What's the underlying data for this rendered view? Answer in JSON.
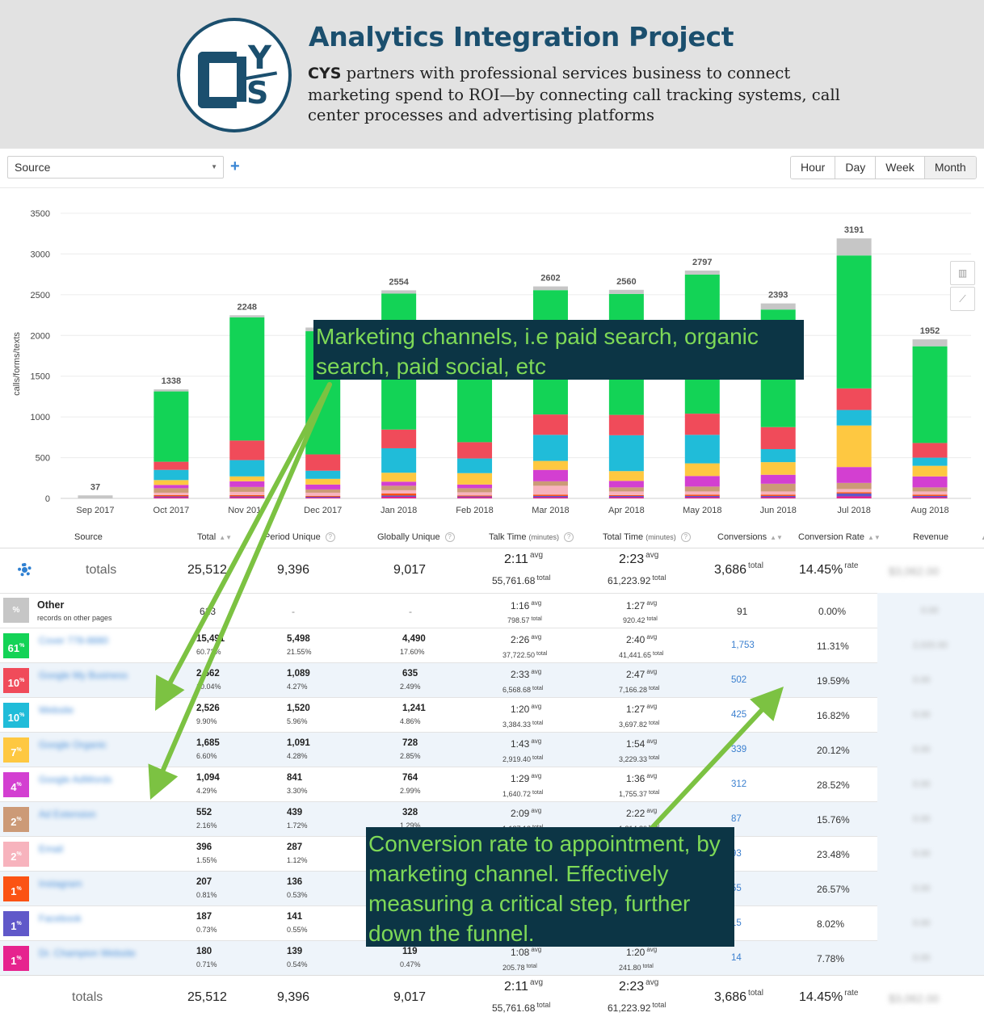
{
  "header": {
    "title": "Analytics Integration Project",
    "desc_bold": "CYS",
    "desc_rest": " partners with professional services business to connect marketing spend to ROI—by connecting call tracking systems, call center processes and advertising platforms",
    "logo_y": "Y",
    "logo_s": "S"
  },
  "toolbar": {
    "source_label": "Source",
    "add_label": "+",
    "ranges": [
      "Hour",
      "Day",
      "Week",
      "Month"
    ],
    "selected_range": "Month"
  },
  "colors": {
    "other": "#c6c6c6",
    "green": "#13d356",
    "red": "#f04b5a",
    "cyan": "#20bcd9",
    "yellow": "#fec841",
    "magenta": "#d33fd1",
    "tan": "#cc9a77",
    "pink": "#f7b3bd",
    "orange": "#fb5314",
    "purple": "#6058c9",
    "hotpink": "#e6238e"
  },
  "chart_data": {
    "type": "bar",
    "ylabel": "calls/forms/texts",
    "ylim": [
      0,
      3500
    ],
    "yticks": [
      0,
      500,
      1000,
      1500,
      2000,
      2500,
      3000,
      3500
    ],
    "categories": [
      "Sep 2017",
      "Oct 2017",
      "Nov 2017",
      "Dec 2017",
      "Jan 2018",
      "Feb 2018",
      "Mar 2018",
      "Apr 2018",
      "May 2018",
      "Jun 2018",
      "Jul 2018",
      "Aug 2018"
    ],
    "totals": [
      37,
      1338,
      2248,
      2097,
      2554,
      2069,
      2602,
      2560,
      2797,
      2393,
      3191,
      1952
    ],
    "total_labels": [
      "37",
      "1338",
      "2248",
      "",
      "2554",
      "",
      "2602",
      "2560",
      "2797",
      "2393",
      "3191",
      "1952"
    ],
    "grid": true,
    "series": [
      {
        "color_key": "hotpink",
        "values": [
          0,
          15,
          15,
          10,
          20,
          15,
          15,
          15,
          15,
          15,
          25,
          15
        ]
      },
      {
        "color_key": "purple",
        "values": [
          0,
          10,
          10,
          10,
          15,
          10,
          15,
          15,
          15,
          15,
          35,
          15
        ]
      },
      {
        "color_key": "orange",
        "values": [
          0,
          15,
          15,
          10,
          25,
          10,
          15,
          10,
          15,
          15,
          15,
          15
        ]
      },
      {
        "color_key": "pink",
        "values": [
          0,
          30,
          40,
          40,
          40,
          40,
          110,
          45,
          40,
          40,
          40,
          40
        ]
      },
      {
        "color_key": "tan",
        "values": [
          0,
          55,
          60,
          40,
          55,
          50,
          55,
          50,
          60,
          95,
          75,
          50
        ]
      },
      {
        "color_key": "magenta",
        "values": [
          0,
          40,
          70,
          60,
          50,
          45,
          140,
          80,
          130,
          110,
          195,
          135
        ]
      },
      {
        "color_key": "yellow",
        "values": [
          0,
          60,
          60,
          70,
          110,
          140,
          110,
          120,
          155,
          155,
          510,
          130
        ]
      },
      {
        "color_key": "cyan",
        "values": [
          0,
          125,
          200,
          100,
          300,
          180,
          320,
          440,
          350,
          160,
          190,
          100
        ]
      },
      {
        "color_key": "red",
        "values": [
          0,
          100,
          240,
          200,
          230,
          200,
          250,
          250,
          260,
          270,
          265,
          180
        ]
      },
      {
        "color_key": "green",
        "values": [
          0,
          863,
          1513,
          1512,
          1669,
          1334,
          1526,
          1485,
          1707,
          1443,
          1632,
          1187
        ]
      },
      {
        "color_key": "other",
        "values": [
          37,
          25,
          25,
          45,
          40,
          45,
          46,
          50,
          50,
          75,
          209,
          85
        ]
      }
    ]
  },
  "table": {
    "headers": {
      "source": "Source",
      "total": "Total",
      "period_unique": "Period Unique",
      "globally_unique": "Globally Unique",
      "talk_time": "Talk Time",
      "total_time": "Total Time",
      "minutes": "(minutes)",
      "conversions": "Conversions",
      "conversion_rate": "Conversion Rate",
      "revenue": "Revenue"
    },
    "totals": {
      "label": "totals",
      "total": "25,512",
      "period_unique": "9,396",
      "globally_unique": "9,017",
      "talk_avg": "2:11",
      "talk_total": "55,761.68",
      "time_avg": "2:23",
      "time_total": "61,223.92",
      "conversions": "3,686",
      "rate": "14.45%",
      "revenue": "$3,062.00",
      "avg_word": "avg",
      "total_word": "total",
      "rate_word": "rate"
    },
    "other_row": {
      "badge": "%",
      "name": "Other",
      "subtitle": "records on other pages",
      "total": "613",
      "period_unique": "-",
      "globally_unique": "-",
      "talk_avg": "1:16",
      "talk_total": "798.57",
      "time_avg": "1:27",
      "time_total": "920.42",
      "conversions": "91",
      "rate": "0.00%",
      "revenue": "0.00"
    },
    "rows": [
      {
        "badge": "61",
        "color_key": "green",
        "name": "Cover 778-8880",
        "total": "15,491",
        "total_pct": "60.72%",
        "pu": "5,498",
        "pu_pct": "21.55%",
        "gu": "4,490",
        "gu_pct": "17.60%",
        "talk_avg": "2:26",
        "talk_total": "37,722.50",
        "time_avg": "2:40",
        "time_total": "41,441.65",
        "conv": "1,753",
        "rate": "11.31%",
        "revenue": "2,020.00"
      },
      {
        "badge": "10",
        "color_key": "red",
        "name": "Google My Business",
        "total": "2,562",
        "total_pct": "10.04%",
        "pu": "1,089",
        "pu_pct": "4.27%",
        "gu": "635",
        "gu_pct": "2.49%",
        "talk_avg": "2:33",
        "talk_total": "6,568.68",
        "time_avg": "2:47",
        "time_total": "7,166.28",
        "conv": "502",
        "rate": "19.59%",
        "revenue": "0.00"
      },
      {
        "badge": "10",
        "color_key": "cyan",
        "name": "Website",
        "total": "2,526",
        "total_pct": "9.90%",
        "pu": "1,520",
        "pu_pct": "5.96%",
        "gu": "1,241",
        "gu_pct": "4.86%",
        "talk_avg": "1:20",
        "talk_total": "3,384.33",
        "time_avg": "1:27",
        "time_total": "3,697.82",
        "conv": "425",
        "rate": "16.82%",
        "revenue": "0.00"
      },
      {
        "badge": "7",
        "color_key": "yellow",
        "name": "Google Organic",
        "total": "1,685",
        "total_pct": "6.60%",
        "pu": "1,091",
        "pu_pct": "4.28%",
        "gu": "728",
        "gu_pct": "2.85%",
        "talk_avg": "1:43",
        "talk_total": "2,919.40",
        "time_avg": "1:54",
        "time_total": "3,229.33",
        "conv": "339",
        "rate": "20.12%",
        "revenue": "0.00"
      },
      {
        "badge": "4",
        "color_key": "magenta",
        "name": "Google AdWords",
        "total": "1,094",
        "total_pct": "4.29%",
        "pu": "841",
        "pu_pct": "3.30%",
        "gu": "764",
        "gu_pct": "2.99%",
        "talk_avg": "1:29",
        "talk_total": "1,640.72",
        "time_avg": "1:36",
        "time_total": "1,755.37",
        "conv": "312",
        "rate": "28.52%",
        "revenue": "0.00"
      },
      {
        "badge": "2",
        "color_key": "tan",
        "name": "Ad Extension",
        "total": "552",
        "total_pct": "2.16%",
        "pu": "439",
        "pu_pct": "1.72%",
        "gu": "328",
        "gu_pct": "1.29%",
        "talk_avg": "2:09",
        "talk_total": "1,187.13",
        "time_avg": "2:22",
        "time_total": "1,314.80",
        "conv": "87",
        "rate": "15.76%",
        "revenue": "0.00"
      },
      {
        "badge": "2",
        "color_key": "pink",
        "name": "Email",
        "total": "396",
        "total_pct": "1.55%",
        "pu": "287",
        "pu_pct": "1.12%",
        "gu": "",
        "gu_pct": "",
        "talk_avg": "",
        "talk_total": "",
        "time_avg": "",
        "time_total": "",
        "conv": "93",
        "rate": "23.48%",
        "revenue": "0.00"
      },
      {
        "badge": "1",
        "color_key": "orange",
        "name": "Instagram",
        "total": "207",
        "total_pct": "0.81%",
        "pu": "136",
        "pu_pct": "0.53%",
        "gu": "",
        "gu_pct": "",
        "talk_avg": "",
        "talk_total": "",
        "time_avg": "",
        "time_total": "",
        "conv": "55",
        "rate": "26.57%",
        "revenue": "0.00"
      },
      {
        "badge": "1",
        "color_key": "purple",
        "name": "Facebook",
        "total": "187",
        "total_pct": "0.73%",
        "pu": "141",
        "pu_pct": "0.55%",
        "gu": "",
        "gu_pct": "",
        "talk_avg": "",
        "talk_total": "",
        "time_avg": "",
        "time_total": "",
        "conv": "15",
        "rate": "8.02%",
        "revenue": "0.00"
      },
      {
        "badge": "1",
        "color_key": "hotpink",
        "name": "Dr. Champion Website",
        "total": "180",
        "total_pct": "0.71%",
        "pu": "139",
        "pu_pct": "0.54%",
        "gu": "119",
        "gu_pct": "0.47%",
        "talk_avg": "1:08",
        "talk_total": "205.78",
        "time_avg": "1:20",
        "time_total": "241.80",
        "conv": "14",
        "rate": "7.78%",
        "revenue": "0.00"
      }
    ]
  },
  "callouts": {
    "channels": "Marketing channels, i.e paid search, organic search, paid social, etc",
    "conversion": "Conversion rate to appointment, by marketing channel. Effectively measuring a critical step, further down the funnel."
  }
}
